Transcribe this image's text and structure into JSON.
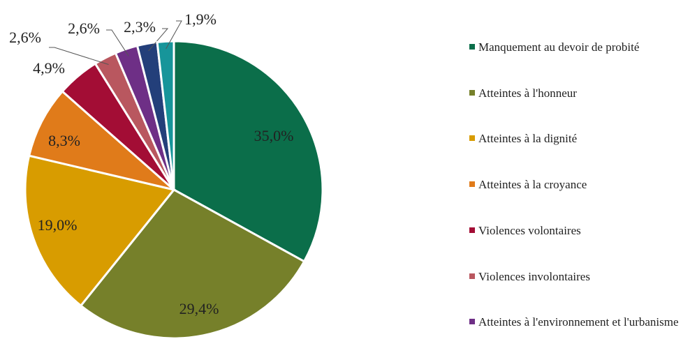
{
  "chart_data": {
    "type": "pie",
    "categories": [
      "Manquement au devoir de probité",
      "Atteintes à l'honneur",
      "Atteintes à la dignité",
      "Atteintes à la croyance",
      "Violences volontaires",
      "Violences involontaires",
      "Atteintes à l'environnement et l'urbanisme",
      null,
      null
    ],
    "values": [
      35.0,
      29.4,
      19.0,
      8.3,
      4.9,
      2.6,
      2.6,
      2.3,
      1.9
    ],
    "value_labels": [
      "35,0%",
      "29,4%",
      "19,0%",
      "8,3%",
      "4,9%",
      "2,6%",
      "2,6%",
      "2,3%",
      "1,9%"
    ],
    "colors": [
      "#0b6e4a",
      "#76802a",
      "#d89c00",
      "#e07b1a",
      "#a30d35",
      "#b9575f",
      "#6e2f86",
      "#233f7a",
      "#17959a"
    ],
    "legend": "right"
  }
}
